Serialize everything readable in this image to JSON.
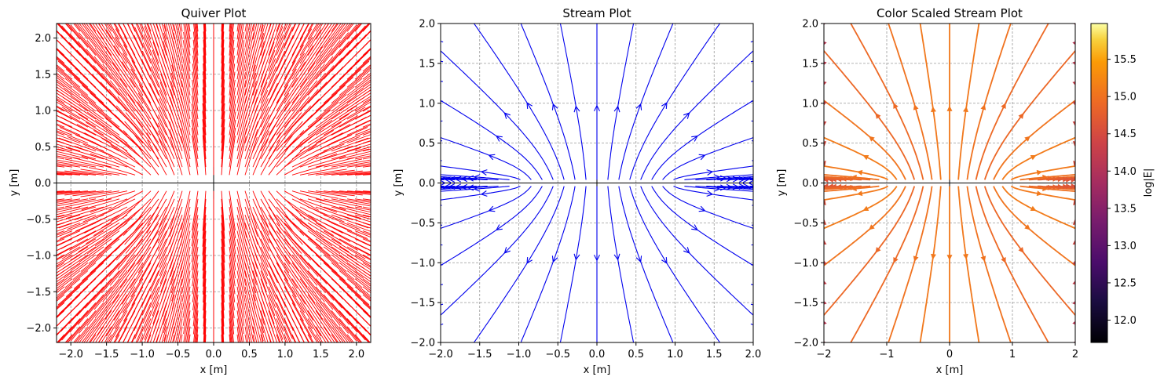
{
  "chart_data": [
    {
      "type": "quiver",
      "title": "Quiver Plot",
      "xlabel": "x [m]",
      "ylabel": "y [m]",
      "xlim": [
        -2.2,
        2.2
      ],
      "ylim": [
        -2.2,
        2.2
      ],
      "xticks": [
        "−2.0",
        "−1.5",
        "−1.0",
        "−0.5",
        "0.0",
        "0.5",
        "1.0",
        "1.5",
        "2.0"
      ],
      "yticks": [
        "−2.0",
        "−1.5",
        "−1.0",
        "−0.5",
        "0.0",
        "0.5",
        "1.0",
        "1.5",
        "2.0"
      ],
      "grid": true,
      "color": "#ff0000"
    },
    {
      "type": "stream",
      "title": "Stream Plot",
      "xlabel": "x [m]",
      "ylabel": "y [m]",
      "xlim": [
        -2.0,
        2.0
      ],
      "ylim": [
        -2.0,
        2.0
      ],
      "xticks": [
        "−2.0",
        "−1.5",
        "−1.0",
        "−0.5",
        "0.0",
        "0.5",
        "1.0",
        "1.5",
        "2.0"
      ],
      "yticks": [
        "−2.0",
        "−1.5",
        "−1.0",
        "−0.5",
        "0.0",
        "0.5",
        "1.0",
        "1.5",
        "2.0"
      ],
      "grid": true,
      "color": "#0000ee"
    },
    {
      "type": "stream-colored",
      "title": "Color Scaled Stream Plot",
      "xlabel": "x [m]",
      "ylabel": "y [m]",
      "xlim": [
        -2,
        2
      ],
      "ylim": [
        -2.0,
        2.0
      ],
      "xticks": [
        "−2",
        "−1",
        "0",
        "1",
        "2"
      ],
      "yticks": [
        "−2.0",
        "−1.5",
        "−1.0",
        "−0.5",
        "0.0",
        "0.5",
        "1.0",
        "1.5",
        "2.0"
      ],
      "grid": true,
      "colormap": "inferno",
      "colorbar": {
        "label": "log|E|",
        "range": [
          11.7,
          15.98
        ],
        "ticks": [
          "12.0",
          "12.5",
          "13.0",
          "13.5",
          "14.0",
          "14.5",
          "15.0",
          "15.5"
        ]
      }
    }
  ]
}
